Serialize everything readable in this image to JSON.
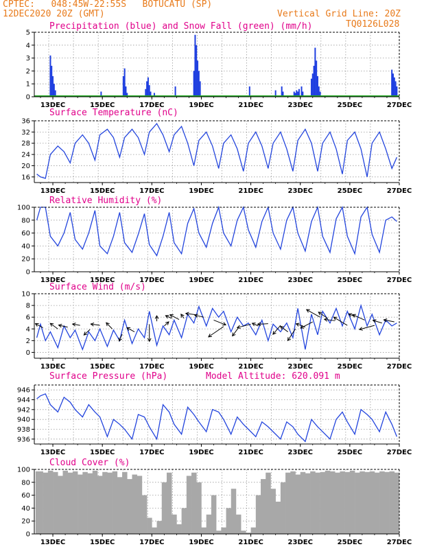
{
  "header": {
    "source": "CPTEC:",
    "coords": "048:45W-22:55S",
    "station": "BOTUCATU (SP)",
    "run": "12DEC2020 20Z (GMT)",
    "grid_note": "Vertical Grid Line: 20Z",
    "model": "TQ0126L028",
    "altitude_label": "Model Altitude:",
    "altitude_value": "620.091 m"
  },
  "colors": {
    "header": "#e87a1a",
    "title": "#e0008a",
    "line": "#2244dd",
    "bar": "#1f3fe0",
    "snow": "#22aa22",
    "cloud": "#a8a8a8"
  },
  "x_ticks": [
    "13DEC",
    "15DEC",
    "17DEC",
    "19DEC",
    "21DEC",
    "23DEC",
    "25DEC",
    "27DEC"
  ],
  "chart_data": [
    {
      "type": "bar",
      "title": "Precipitation (blue) and Snow Fall (green) (mm/h)",
      "ylim": [
        0,
        5
      ],
      "yticks": [
        0,
        1,
        2,
        3,
        4,
        5
      ],
      "series": [
        {
          "name": "Precipitation",
          "values": [
            {
              "x": 12.9,
              "y": 3.2
            },
            {
              "x": 12.95,
              "y": 2.4
            },
            {
              "x": 13.0,
              "y": 1.6
            },
            {
              "x": 13.05,
              "y": 1.0
            },
            {
              "x": 13.1,
              "y": 0.5
            },
            {
              "x": 14.95,
              "y": 0.4
            },
            {
              "x": 15.85,
              "y": 1.6
            },
            {
              "x": 15.9,
              "y": 2.2
            },
            {
              "x": 15.95,
              "y": 0.8
            },
            {
              "x": 16.0,
              "y": 0.3
            },
            {
              "x": 16.75,
              "y": 0.6
            },
            {
              "x": 16.8,
              "y": 1.2
            },
            {
              "x": 16.85,
              "y": 1.5
            },
            {
              "x": 16.9,
              "y": 0.9
            },
            {
              "x": 16.95,
              "y": 0.4
            },
            {
              "x": 17.1,
              "y": 0.3
            },
            {
              "x": 17.95,
              "y": 0.8
            },
            {
              "x": 18.7,
              "y": 2.0
            },
            {
              "x": 18.75,
              "y": 4.8
            },
            {
              "x": 18.8,
              "y": 4.0
            },
            {
              "x": 18.85,
              "y": 2.8
            },
            {
              "x": 18.9,
              "y": 2.0
            },
            {
              "x": 18.95,
              "y": 1.2
            },
            {
              "x": 20.95,
              "y": 0.8
            },
            {
              "x": 22.0,
              "y": 0.5
            },
            {
              "x": 22.25,
              "y": 0.8
            },
            {
              "x": 22.3,
              "y": 0.4
            },
            {
              "x": 22.75,
              "y": 0.4
            },
            {
              "x": 22.8,
              "y": 0.3
            },
            {
              "x": 22.85,
              "y": 0.5
            },
            {
              "x": 22.9,
              "y": 0.4
            },
            {
              "x": 22.95,
              "y": 0.6
            },
            {
              "x": 23.05,
              "y": 0.8
            },
            {
              "x": 23.1,
              "y": 0.4
            },
            {
              "x": 23.45,
              "y": 1.4
            },
            {
              "x": 23.5,
              "y": 1.8
            },
            {
              "x": 23.55,
              "y": 2.4
            },
            {
              "x": 23.6,
              "y": 3.8
            },
            {
              "x": 23.65,
              "y": 2.8
            },
            {
              "x": 23.7,
              "y": 1.6
            },
            {
              "x": 23.75,
              "y": 0.8
            },
            {
              "x": 23.8,
              "y": 0.4
            },
            {
              "x": 26.7,
              "y": 2.1
            },
            {
              "x": 26.75,
              "y": 1.8
            },
            {
              "x": 26.8,
              "y": 1.5
            },
            {
              "x": 26.85,
              "y": 1.2
            },
            {
              "x": 26.9,
              "y": 0.8
            }
          ]
        },
        {
          "name": "Snow Fall",
          "values": []
        }
      ]
    },
    {
      "type": "line",
      "title": "Surface Temperature (nC)",
      "ylim": [
        14,
        36
      ],
      "yticks": [
        16,
        20,
        24,
        28,
        32,
        36
      ],
      "x": [
        12.35,
        12.5,
        12.7,
        12.9,
        13.2,
        13.45,
        13.7,
        13.9,
        14.2,
        14.45,
        14.7,
        14.9,
        15.2,
        15.45,
        15.7,
        15.9,
        16.2,
        16.45,
        16.7,
        16.9,
        17.2,
        17.45,
        17.7,
        17.9,
        18.2,
        18.45,
        18.7,
        18.9,
        19.2,
        19.45,
        19.7,
        19.9,
        20.2,
        20.45,
        20.7,
        20.9,
        21.2,
        21.45,
        21.7,
        21.9,
        22.2,
        22.45,
        22.7,
        22.9,
        23.2,
        23.45,
        23.7,
        23.9,
        24.2,
        24.45,
        24.7,
        24.9,
        25.2,
        25.45,
        25.7,
        25.9,
        26.2,
        26.45,
        26.7,
        26.9
      ],
      "y": [
        17,
        16,
        15.5,
        24,
        27,
        25,
        21,
        28,
        31,
        28,
        22,
        31,
        33,
        30,
        23,
        30,
        33,
        30,
        24,
        32,
        35,
        31,
        25,
        31,
        34,
        28,
        20,
        29,
        32,
        27,
        19,
        28,
        31,
        26,
        18,
        28,
        32,
        27,
        19,
        28,
        32,
        26,
        18,
        29,
        33,
        28,
        18,
        28,
        32,
        26,
        17,
        29,
        32,
        26,
        16,
        28,
        32,
        26,
        19,
        23
      ]
    },
    {
      "type": "line",
      "title": "Relative Humidity (%)",
      "ylim": [
        0,
        100
      ],
      "yticks": [
        0,
        20,
        40,
        60,
        80,
        100
      ],
      "x": [
        12.35,
        12.5,
        12.7,
        12.9,
        13.2,
        13.45,
        13.7,
        13.9,
        14.2,
        14.45,
        14.7,
        14.9,
        15.2,
        15.45,
        15.7,
        15.9,
        16.2,
        16.45,
        16.7,
        16.9,
        17.2,
        17.45,
        17.7,
        17.9,
        18.2,
        18.45,
        18.7,
        18.9,
        19.2,
        19.45,
        19.7,
        19.9,
        20.2,
        20.45,
        20.7,
        20.9,
        21.2,
        21.45,
        21.7,
        21.9,
        22.2,
        22.45,
        22.7,
        22.9,
        23.2,
        23.45,
        23.7,
        23.9,
        24.2,
        24.45,
        24.7,
        24.9,
        25.2,
        25.45,
        25.7,
        25.9,
        26.2,
        26.45,
        26.7,
        26.9
      ],
      "y": [
        80,
        100,
        100,
        55,
        40,
        60,
        92,
        50,
        35,
        60,
        95,
        40,
        28,
        55,
        92,
        45,
        30,
        58,
        90,
        42,
        25,
        55,
        92,
        45,
        28,
        75,
        98,
        60,
        38,
        75,
        100,
        60,
        40,
        80,
        100,
        65,
        38,
        78,
        100,
        60,
        35,
        80,
        100,
        60,
        32,
        78,
        100,
        55,
        30,
        82,
        100,
        55,
        28,
        85,
        100,
        58,
        30,
        80,
        85,
        78
      ]
    },
    {
      "type": "line",
      "title": "Surface Wind (m/s)",
      "ylim": [
        -1,
        10
      ],
      "yticks": [
        0,
        2,
        4,
        6,
        8,
        10
      ],
      "x": [
        12.35,
        12.5,
        12.7,
        12.9,
        13.2,
        13.45,
        13.7,
        13.9,
        14.2,
        14.45,
        14.7,
        14.9,
        15.2,
        15.45,
        15.7,
        15.9,
        16.2,
        16.45,
        16.7,
        16.9,
        17.2,
        17.45,
        17.7,
        17.9,
        18.2,
        18.45,
        18.7,
        18.9,
        19.2,
        19.45,
        19.7,
        19.9,
        20.2,
        20.45,
        20.7,
        20.9,
        21.2,
        21.45,
        21.7,
        21.9,
        22.2,
        22.45,
        22.7,
        22.9,
        23.2,
        23.45,
        23.7,
        23.9,
        24.2,
        24.45,
        24.7,
        24.9,
        25.2,
        25.45,
        25.7,
        25.9,
        26.2,
        26.45,
        26.7,
        26.9
      ],
      "y": [
        2.5,
        4.8,
        2.0,
        3.5,
        0.8,
        4.5,
        2.5,
        3.8,
        0.5,
        3.5,
        2.0,
        4.0,
        1.0,
        3.8,
        2.0,
        5.5,
        1.5,
        4.0,
        2.5,
        7.0,
        1.2,
        4.5,
        3.0,
        5.5,
        2.5,
        6.5,
        5.0,
        7.8,
        4.5,
        7.5,
        6.0,
        7.0,
        3.5,
        6.0,
        4.5,
        5.0,
        3.0,
        5.5,
        2.0,
        4.8,
        3.5,
        5.0,
        2.5,
        7.5,
        0.5,
        6.5,
        3.0,
        7.0,
        5.0,
        7.5,
        4.5,
        7.0,
        4.0,
        8.0,
        4.5,
        6.5,
        3.0,
        5.5,
        4.5,
        5.0
      ]
    },
    {
      "type": "line",
      "title": "Surface Pressure (hPa)",
      "ylim": [
        935,
        947
      ],
      "yticks": [
        936,
        938,
        940,
        942,
        944,
        946
      ],
      "x": [
        12.35,
        12.5,
        12.7,
        12.9,
        13.2,
        13.45,
        13.7,
        13.9,
        14.2,
        14.45,
        14.7,
        14.9,
        15.2,
        15.45,
        15.7,
        15.9,
        16.2,
        16.45,
        16.7,
        16.9,
        17.2,
        17.45,
        17.7,
        17.9,
        18.2,
        18.45,
        18.7,
        18.9,
        19.2,
        19.45,
        19.7,
        19.9,
        20.2,
        20.45,
        20.7,
        20.9,
        21.2,
        21.45,
        21.7,
        21.9,
        22.2,
        22.45,
        22.7,
        22.9,
        23.2,
        23.45,
        23.7,
        23.9,
        24.2,
        24.45,
        24.7,
        24.9,
        25.2,
        25.45,
        25.7,
        25.9,
        26.2,
        26.45,
        26.7,
        26.9
      ],
      "y": [
        944.2,
        944.8,
        945.2,
        943.0,
        941.5,
        944.5,
        943.5,
        942.0,
        940.5,
        943.0,
        941.5,
        940.5,
        936.5,
        940.0,
        939.0,
        938.0,
        936.0,
        941.0,
        940.5,
        938.5,
        936.0,
        943.0,
        941.5,
        939.0,
        937.0,
        942.5,
        941.0,
        939.5,
        937.5,
        942.0,
        941.5,
        940.0,
        937.0,
        940.5,
        939.0,
        938.0,
        936.5,
        939.5,
        938.5,
        937.5,
        936.0,
        939.5,
        938.5,
        937.0,
        935.5,
        940.0,
        938.5,
        937.5,
        936.0,
        940.0,
        941.5,
        939.5,
        937.0,
        942.0,
        941.0,
        940.0,
        937.5,
        941.5,
        939.0,
        936.5
      ]
    },
    {
      "type": "area",
      "title": "Cloud Cover (%)",
      "ylim": [
        0,
        100
      ],
      "yticks": [
        0,
        20,
        40,
        60,
        80,
        100
      ],
      "x": [
        12.3,
        12.6,
        12.8,
        13.0,
        13.2,
        13.4,
        13.6,
        13.8,
        14.0,
        14.2,
        14.4,
        14.6,
        14.8,
        15.0,
        15.2,
        15.4,
        15.6,
        15.8,
        16.0,
        16.2,
        16.4,
        16.6,
        16.8,
        17.0,
        17.2,
        17.4,
        17.6,
        17.8,
        18.0,
        18.2,
        18.4,
        18.6,
        18.8,
        19.0,
        19.2,
        19.4,
        19.6,
        19.8,
        20.0,
        20.2,
        20.4,
        20.6,
        20.8,
        21.0,
        21.2,
        21.4,
        21.6,
        21.8,
        22.0,
        22.2,
        22.4,
        22.6,
        22.8,
        23.0,
        23.2,
        23.4,
        23.6,
        23.8,
        24.0,
        24.2,
        24.4,
        24.6,
        24.8,
        25.0,
        25.2,
        25.4,
        25.6,
        25.8,
        26.0,
        26.2,
        26.4,
        26.6,
        26.8,
        27.0
      ],
      "y": [
        97,
        95,
        98,
        96,
        90,
        98,
        95,
        97,
        92,
        96,
        94,
        98,
        90,
        96,
        95,
        97,
        88,
        96,
        85,
        92,
        90,
        60,
        25,
        10,
        20,
        80,
        95,
        30,
        15,
        40,
        90,
        95,
        80,
        10,
        30,
        60,
        5,
        10,
        40,
        70,
        30,
        5,
        2,
        10,
        60,
        85,
        95,
        70,
        50,
        80,
        95,
        97,
        92,
        96,
        94,
        97,
        95,
        96,
        98,
        97,
        95,
        97,
        96,
        98,
        95,
        97,
        96,
        97,
        95,
        97,
        96,
        97,
        95,
        96
      ]
    }
  ]
}
